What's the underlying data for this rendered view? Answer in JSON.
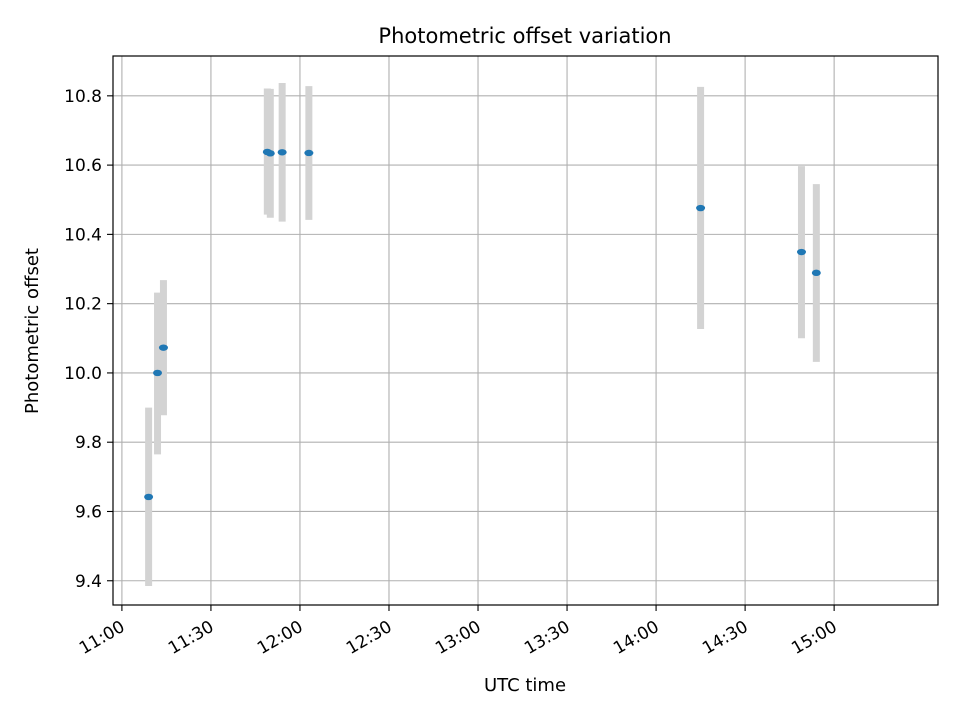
{
  "chart_data": {
    "type": "scatter",
    "title": "Photometric offset variation",
    "xlabel": "UTC time",
    "ylabel": "Photometric offset",
    "x_is_time": true,
    "xlim": [
      "10:57",
      "15:35"
    ],
    "ylim": [
      9.33,
      10.915
    ],
    "xticks": [
      "11:00",
      "11:30",
      "12:00",
      "12:30",
      "13:00",
      "13:30",
      "14:00",
      "14:30",
      "15:00"
    ],
    "yticks": [
      9.4,
      9.6,
      9.8,
      10.0,
      10.2,
      10.4,
      10.6,
      10.8
    ],
    "ytick_labels": [
      "9.4",
      "9.6",
      "9.8",
      "10.0",
      "10.2",
      "10.4",
      "10.6",
      "10.8"
    ],
    "grid": true,
    "colors": {
      "point": "#1f77b4",
      "errorbar": "#d3d3d3",
      "grid": "#b0b0b0",
      "axes": "#000000"
    },
    "series": [
      {
        "points": [
          {
            "x": "11:09",
            "y": 9.642,
            "ymin": 9.385,
            "ymax": 9.9
          },
          {
            "x": "11:12",
            "y": 10.0,
            "ymin": 9.765,
            "ymax": 10.232
          },
          {
            "x": "11:14",
            "y": 10.073,
            "ymin": 9.878,
            "ymax": 10.268
          },
          {
            "x": "11:49",
            "y": 10.638,
            "ymin": 10.457,
            "ymax": 10.821
          },
          {
            "x": "11:50",
            "y": 10.634,
            "ymin": 10.448,
            "ymax": 10.82
          },
          {
            "x": "11:54",
            "y": 10.637,
            "ymin": 10.437,
            "ymax": 10.837
          },
          {
            "x": "12:03",
            "y": 10.635,
            "ymin": 10.442,
            "ymax": 10.828
          },
          {
            "x": "14:15",
            "y": 10.476,
            "ymin": 10.127,
            "ymax": 10.826
          },
          {
            "x": "14:49",
            "y": 10.349,
            "ymin": 10.1,
            "ymax": 10.597
          },
          {
            "x": "14:54",
            "y": 10.289,
            "ymin": 10.032,
            "ymax": 10.545
          }
        ]
      }
    ]
  }
}
